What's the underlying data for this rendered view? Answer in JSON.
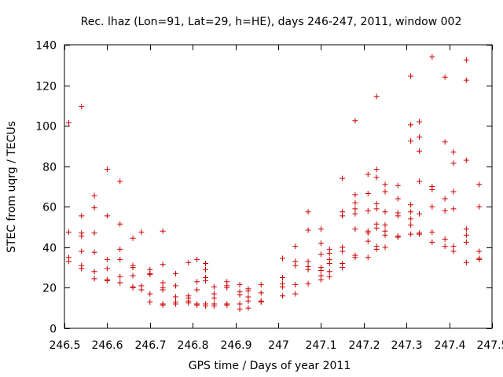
{
  "chart_data": {
    "type": "scatter",
    "title": "Rec. lhaz (Lon=91, Lat=29, h=HE), days 246-247, 2011, window 002",
    "xlabel": "GPS time / Days of year 2011",
    "ylabel": "STEC from uqrg / TECUs",
    "xlim": [
      246.5,
      247.5
    ],
    "ylim": [
      0,
      140
    ],
    "xticks": [
      246.5,
      246.6,
      246.7,
      246.8,
      246.9,
      247.0,
      247.1,
      247.2,
      247.3,
      247.4,
      247.5
    ],
    "xtick_labels": [
      "246.5",
      "246.6",
      "246.7",
      "246.8",
      "246.9",
      "247",
      "247.1",
      "247.2",
      "247.3",
      "247.4",
      "247.5"
    ],
    "yticks": [
      0,
      20,
      40,
      60,
      80,
      100,
      120,
      140
    ],
    "ytick_labels": [
      "0",
      "20",
      "40",
      "60",
      "80",
      "100",
      "120",
      "140"
    ],
    "grid": false,
    "marker": "+",
    "marker_color": "#cc0000",
    "points": [
      [
        246.51,
        101.5
      ],
      [
        246.51,
        47.5
      ],
      [
        246.51,
        35
      ],
      [
        246.51,
        33
      ],
      [
        246.54,
        109.5
      ],
      [
        246.54,
        55.5
      ],
      [
        246.54,
        47
      ],
      [
        246.54,
        45.5
      ],
      [
        246.54,
        38
      ],
      [
        246.54,
        31
      ],
      [
        246.54,
        29.5
      ],
      [
        246.57,
        65.5
      ],
      [
        246.57,
        59.5
      ],
      [
        246.57,
        47
      ],
      [
        246.57,
        37.5
      ],
      [
        246.57,
        28
      ],
      [
        246.57,
        24.5
      ],
      [
        246.6,
        78.5
      ],
      [
        246.6,
        55.5
      ],
      [
        246.6,
        34
      ],
      [
        246.6,
        29.5
      ],
      [
        246.6,
        24
      ],
      [
        246.6,
        23.5
      ],
      [
        246.63,
        72.5
      ],
      [
        246.63,
        51.5
      ],
      [
        246.63,
        39
      ],
      [
        246.63,
        34
      ],
      [
        246.63,
        25.5
      ],
      [
        246.63,
        22.5
      ],
      [
        246.66,
        44.5
      ],
      [
        246.66,
        31
      ],
      [
        246.66,
        30
      ],
      [
        246.66,
        26
      ],
      [
        246.66,
        20.5
      ],
      [
        246.66,
        20
      ],
      [
        246.68,
        47.5
      ],
      [
        246.68,
        21
      ],
      [
        246.68,
        19
      ],
      [
        246.7,
        29
      ],
      [
        246.7,
        27
      ],
      [
        246.7,
        26.5
      ],
      [
        246.7,
        17
      ],
      [
        246.7,
        13
      ],
      [
        246.73,
        48
      ],
      [
        246.73,
        31.5
      ],
      [
        246.73,
        22.5
      ],
      [
        246.73,
        20
      ],
      [
        246.73,
        19
      ],
      [
        246.73,
        12
      ],
      [
        246.73,
        11.5
      ],
      [
        246.76,
        27
      ],
      [
        246.76,
        21
      ],
      [
        246.76,
        15.5
      ],
      [
        246.76,
        13
      ],
      [
        246.76,
        12
      ],
      [
        246.79,
        32.5
      ],
      [
        246.79,
        16
      ],
      [
        246.79,
        15
      ],
      [
        246.79,
        13.5
      ],
      [
        246.79,
        12.5
      ],
      [
        246.81,
        34
      ],
      [
        246.81,
        23
      ],
      [
        246.81,
        19
      ],
      [
        246.81,
        12
      ],
      [
        246.81,
        11.5
      ],
      [
        246.83,
        32
      ],
      [
        246.83,
        29
      ],
      [
        246.83,
        25
      ],
      [
        246.83,
        23.5
      ],
      [
        246.83,
        12
      ],
      [
        246.83,
        11
      ],
      [
        246.85,
        20.5
      ],
      [
        246.85,
        17
      ],
      [
        246.85,
        15
      ],
      [
        246.85,
        12
      ],
      [
        246.85,
        11
      ],
      [
        246.88,
        23
      ],
      [
        246.88,
        21
      ],
      [
        246.88,
        20
      ],
      [
        246.88,
        12
      ],
      [
        246.88,
        11.5
      ],
      [
        246.91,
        21.5
      ],
      [
        246.91,
        18
      ],
      [
        246.91,
        16.5
      ],
      [
        246.91,
        12
      ],
      [
        246.91,
        9.5
      ],
      [
        246.93,
        19.5
      ],
      [
        246.93,
        18.5
      ],
      [
        246.93,
        15.5
      ],
      [
        246.93,
        13.5
      ],
      [
        246.93,
        10
      ],
      [
        246.96,
        21.5
      ],
      [
        246.96,
        17.5
      ],
      [
        246.96,
        13.5
      ],
      [
        246.96,
        13
      ],
      [
        247.01,
        34.5
      ],
      [
        247.01,
        25
      ],
      [
        247.01,
        22
      ],
      [
        247.01,
        20.5
      ],
      [
        247.01,
        16
      ],
      [
        247.04,
        40.5
      ],
      [
        247.04,
        33
      ],
      [
        247.04,
        31
      ],
      [
        247.04,
        21.5
      ],
      [
        247.04,
        17
      ],
      [
        247.07,
        57.5
      ],
      [
        247.07,
        48.5
      ],
      [
        247.07,
        33
      ],
      [
        247.07,
        30.5
      ],
      [
        247.07,
        29
      ],
      [
        247.07,
        22
      ],
      [
        247.1,
        49
      ],
      [
        247.1,
        42
      ],
      [
        247.1,
        36.5
      ],
      [
        247.1,
        30
      ],
      [
        247.1,
        28.5
      ],
      [
        247.1,
        26
      ],
      [
        247.1,
        24
      ],
      [
        247.12,
        39
      ],
      [
        247.12,
        37
      ],
      [
        247.12,
        34
      ],
      [
        247.12,
        32
      ],
      [
        247.12,
        28
      ],
      [
        247.12,
        25.5
      ],
      [
        247.15,
        74
      ],
      [
        247.15,
        57.5
      ],
      [
        247.15,
        55.5
      ],
      [
        247.15,
        40
      ],
      [
        247.15,
        38
      ],
      [
        247.15,
        32
      ],
      [
        247.15,
        30
      ],
      [
        247.18,
        102.5
      ],
      [
        247.18,
        66
      ],
      [
        247.18,
        62
      ],
      [
        247.18,
        59
      ],
      [
        247.18,
        56.5
      ],
      [
        247.18,
        49
      ],
      [
        247.18,
        36
      ],
      [
        247.18,
        35
      ],
      [
        247.21,
        76
      ],
      [
        247.21,
        66.5
      ],
      [
        247.21,
        58
      ],
      [
        247.21,
        48
      ],
      [
        247.21,
        47
      ],
      [
        247.21,
        43
      ],
      [
        247.21,
        35
      ],
      [
        247.23,
        114.5
      ],
      [
        247.23,
        78.5
      ],
      [
        247.23,
        74.5
      ],
      [
        247.23,
        61.5
      ],
      [
        247.23,
        59
      ],
      [
        247.23,
        51.5
      ],
      [
        247.23,
        49.5
      ],
      [
        247.23,
        40.5
      ],
      [
        247.23,
        39
      ],
      [
        247.25,
        71
      ],
      [
        247.25,
        67.5
      ],
      [
        247.25,
        57.5
      ],
      [
        247.25,
        51
      ],
      [
        247.25,
        48
      ],
      [
        247.25,
        46
      ],
      [
        247.25,
        40
      ],
      [
        247.28,
        70.5
      ],
      [
        247.28,
        64
      ],
      [
        247.28,
        57
      ],
      [
        247.28,
        55.5
      ],
      [
        247.28,
        45.5
      ],
      [
        247.28,
        45
      ],
      [
        247.31,
        124.5
      ],
      [
        247.31,
        100.5
      ],
      [
        247.31,
        92.5
      ],
      [
        247.31,
        61
      ],
      [
        247.31,
        57.5
      ],
      [
        247.31,
        54
      ],
      [
        247.31,
        51
      ],
      [
        247.31,
        46.5
      ],
      [
        247.33,
        102
      ],
      [
        247.33,
        94.5
      ],
      [
        247.33,
        87.5
      ],
      [
        247.33,
        72.5
      ],
      [
        247.33,
        56.5
      ],
      [
        247.33,
        47
      ],
      [
        247.33,
        46.5
      ],
      [
        247.36,
        134
      ],
      [
        247.36,
        70
      ],
      [
        247.36,
        68.5
      ],
      [
        247.36,
        60
      ],
      [
        247.36,
        47.5
      ],
      [
        247.36,
        42.5
      ],
      [
        247.39,
        124
      ],
      [
        247.39,
        92
      ],
      [
        247.39,
        64
      ],
      [
        247.39,
        58
      ],
      [
        247.39,
        44
      ],
      [
        247.39,
        40.5
      ],
      [
        247.41,
        87
      ],
      [
        247.41,
        81.5
      ],
      [
        247.41,
        67.5
      ],
      [
        247.41,
        59
      ],
      [
        247.41,
        40.5
      ],
      [
        247.41,
        38
      ],
      [
        247.44,
        132.5
      ],
      [
        247.44,
        122.5
      ],
      [
        247.44,
        83
      ],
      [
        247.44,
        49
      ],
      [
        247.44,
        46
      ],
      [
        247.44,
        42.5
      ],
      [
        247.44,
        32.5
      ],
      [
        247.47,
        71
      ],
      [
        247.47,
        60
      ],
      [
        247.47,
        38
      ],
      [
        247.47,
        34.5
      ],
      [
        247.47,
        34
      ]
    ]
  }
}
